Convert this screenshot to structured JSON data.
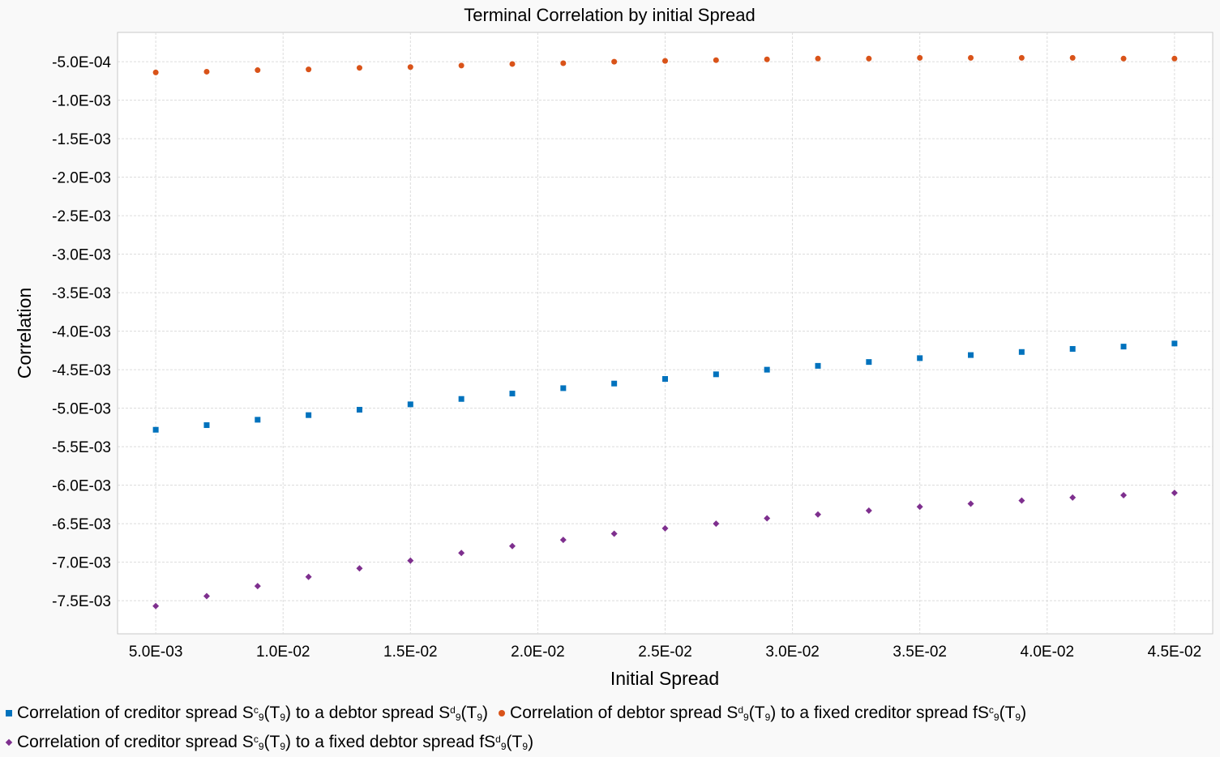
{
  "chart_data": {
    "type": "scatter",
    "title": "Terminal Correlation by initial Spread",
    "xlabel": "Initial Spread",
    "ylabel": "Correlation",
    "xlim": [
      0.0035,
      0.0465
    ],
    "ylim": [
      -0.00793,
      -0.00012
    ],
    "x_ticks": [
      0.005,
      0.01,
      0.015,
      0.02,
      0.025,
      0.03,
      0.035,
      0.04,
      0.045
    ],
    "x_tick_labels": [
      "5.0E-03",
      "1.0E-02",
      "1.5E-02",
      "2.0E-02",
      "2.5E-02",
      "3.0E-02",
      "3.5E-02",
      "4.0E-02",
      "4.5E-02"
    ],
    "y_ticks": [
      -0.0005,
      -0.001,
      -0.0015,
      -0.002,
      -0.0025,
      -0.003,
      -0.0035,
      -0.004,
      -0.0045,
      -0.005,
      -0.0055,
      -0.006,
      -0.0065,
      -0.007,
      -0.0075
    ],
    "y_tick_labels": [
      "-5.0E-04",
      "-1.0E-03",
      "-1.5E-03",
      "-2.0E-03",
      "-2.5E-03",
      "-3.0E-03",
      "-3.5E-03",
      "-4.0E-03",
      "-4.5E-03",
      "-5.0E-03",
      "-5.5E-03",
      "-6.0E-03",
      "-6.5E-03",
      "-7.0E-03",
      "-7.5E-03"
    ],
    "grid": true,
    "legend_position": "bottom",
    "x": [
      0.005,
      0.007,
      0.009,
      0.011,
      0.013,
      0.015,
      0.017,
      0.019,
      0.021,
      0.023,
      0.025,
      0.027,
      0.029,
      0.031,
      0.033,
      0.035,
      0.037,
      0.039,
      0.041,
      0.043,
      0.045
    ],
    "series": [
      {
        "name": "Correlation of creditor spread S c 9 (T 9 ) to a debtor spread S d 9 (T 9 )",
        "name_parts": {
          "a": "Correlation of creditor spread S",
          "b": "c",
          "c": "9",
          "d": "(T",
          "e": "9",
          "f": ") to a debtor spread S",
          "g": "d",
          "h": "9",
          "i": "(T",
          "j": "9",
          "k": ")"
        },
        "color": "#0072bd",
        "marker": "square",
        "values": [
          -0.00528,
          -0.00522,
          -0.00515,
          -0.00509,
          -0.00502,
          -0.00495,
          -0.00488,
          -0.00481,
          -0.00474,
          -0.00468,
          -0.00462,
          -0.00456,
          -0.0045,
          -0.00445,
          -0.0044,
          -0.00435,
          -0.00431,
          -0.00427,
          -0.00423,
          -0.0042,
          -0.00416
        ]
      },
      {
        "name": "Correlation of debtor spread S d 9 (T 9 ) to a fixed creditor spread fS c 9 (T 9 )",
        "name_parts": {
          "a": "Correlation of debtor spread S",
          "b": "d",
          "c": "9",
          "d": "(T",
          "e": "9",
          "f": ") to a fixed creditor spread fS",
          "g": "c",
          "h": "9",
          "i": "(T",
          "j": "9",
          "k": ")"
        },
        "color": "#d95319",
        "marker": "circle",
        "values": [
          -0.00064,
          -0.00063,
          -0.00061,
          -0.0006,
          -0.00058,
          -0.00057,
          -0.00055,
          -0.00053,
          -0.00052,
          -0.0005,
          -0.00049,
          -0.00048,
          -0.00047,
          -0.00046,
          -0.00046,
          -0.00045,
          -0.00045,
          -0.00045,
          -0.00045,
          -0.00046,
          -0.00046
        ]
      },
      {
        "name": "Correlation of creditor spread S c 9 (T 9 ) to a fixed debtor spread fS d 9 (T 9 )",
        "name_parts": {
          "a": "Correlation of creditor spread S",
          "b": "c",
          "c": "9",
          "d": "(T",
          "e": "9",
          "f": ") to a fixed debtor spread fS",
          "g": "d",
          "h": "9",
          "i": "(T",
          "j": "9",
          "k": ")"
        },
        "color": "#7e2f8e",
        "marker": "diamond",
        "values": [
          -0.00757,
          -0.00744,
          -0.00731,
          -0.00719,
          -0.00708,
          -0.00698,
          -0.00688,
          -0.00679,
          -0.00671,
          -0.00663,
          -0.00656,
          -0.0065,
          -0.00643,
          -0.00638,
          -0.00633,
          -0.00628,
          -0.00624,
          -0.0062,
          -0.00616,
          -0.00613,
          -0.0061
        ]
      }
    ]
  }
}
